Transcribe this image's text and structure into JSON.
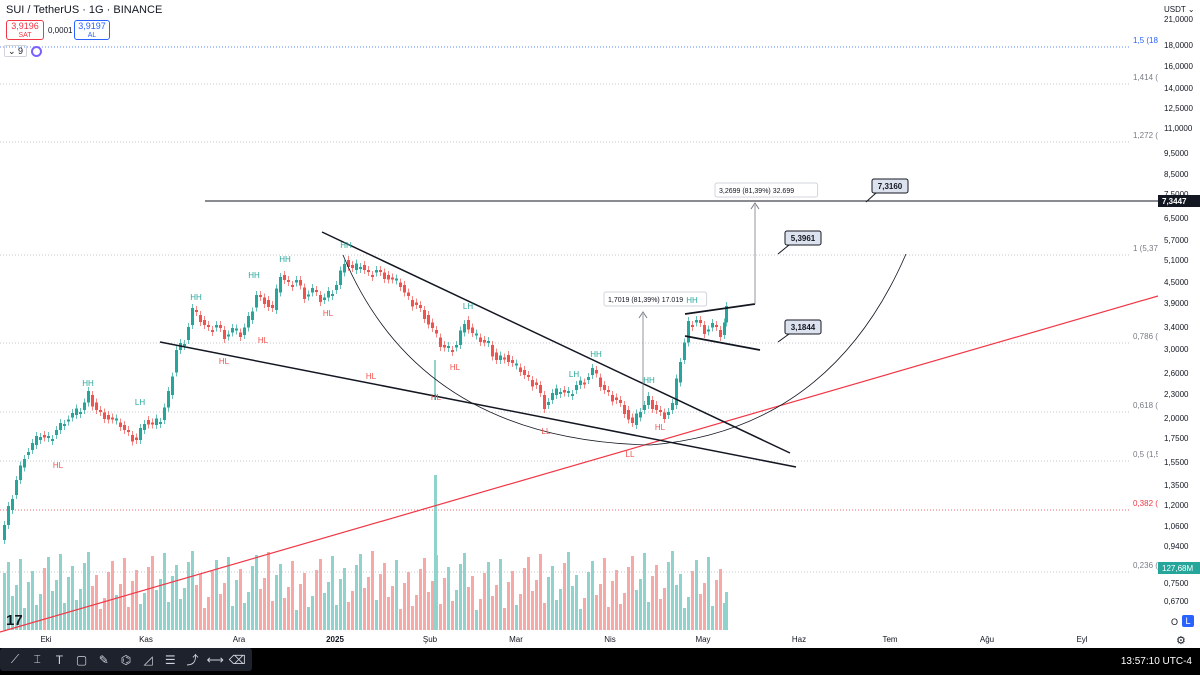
{
  "header": {
    "symbol_title": "SUI / TetherUS · 1G · BINANCE",
    "sell_price": "3,9196",
    "sell_label": "SAT",
    "spread": "0,0001",
    "buy_price": "3,9197",
    "buy_label": "AL",
    "indicator_count": "9",
    "currency": "USDT"
  },
  "price_axis": {
    "labels": [
      "21,0000",
      "18,0000",
      "16,0000",
      "14,0000",
      "12,5000",
      "11,0000",
      "9,5000",
      "8,5000",
      "7,5000",
      "6,5000",
      "5,7000",
      "5,1000",
      "4,5000",
      "3,9000",
      "3,4000",
      "3,0000",
      "2,6000",
      "2,3000",
      "2,0000",
      "1,7500",
      "1,5500",
      "1,3500",
      "1,2000",
      "1,0600",
      "0,9400",
      "0,8300",
      "0,7500",
      "0,6700"
    ],
    "current_price": "7,3447",
    "volume_label": "127,68M"
  },
  "fib_levels": [
    {
      "label": "1,5 (18,",
      "color": "#2962ff"
    },
    {
      "label": "1,414 (1",
      "color": "#787b86"
    },
    {
      "label": "1,272 (1",
      "color": "#787b86"
    },
    {
      "label": "1 (5,37(",
      "color": "#787b86"
    },
    {
      "label": "0,786 (3",
      "color": "#787b86"
    },
    {
      "label": "0,618 (2",
      "color": "#787b86"
    },
    {
      "label": "0,5 (1,5",
      "color": "#787b86"
    },
    {
      "label": "0,382 (1",
      "color": "#f23645"
    },
    {
      "label": "0,236 (0",
      "color": "#787b86"
    }
  ],
  "time_axis": [
    "Eki",
    "Kas",
    "Ara",
    "2025",
    "Şub",
    "Mar",
    "Nis",
    "May",
    "Haz",
    "Tem",
    "Ağu",
    "Eyl"
  ],
  "callouts": [
    {
      "text": "7,3160"
    },
    {
      "text": "5,3961"
    },
    {
      "text": "3,1844"
    }
  ],
  "measures": [
    {
      "text": "3,2699 (81,39%) 32.699"
    },
    {
      "text": "1,7019 (81,39%) 17.019"
    }
  ],
  "swing_labels": {
    "hh": "HH",
    "hl": "HL",
    "lh": "LH",
    "ll": "LL"
  },
  "clock": "13:57:10 UTC-4",
  "scale_options": {
    "o": "O",
    "l": "L"
  },
  "colors": {
    "up": "#26a69a",
    "down": "#ef5350",
    "trend": "#f23645",
    "vol_up": "#8fd3cc",
    "vol_down": "#f7a9a7"
  },
  "icons": [
    "trend-line-icon",
    "cursor-icon",
    "text-icon",
    "note-icon",
    "brush-icon",
    "fib-icon",
    "pattern-icon",
    "measure-icon",
    "path-icon",
    "ruler-icon",
    "eraser-icon"
  ]
}
